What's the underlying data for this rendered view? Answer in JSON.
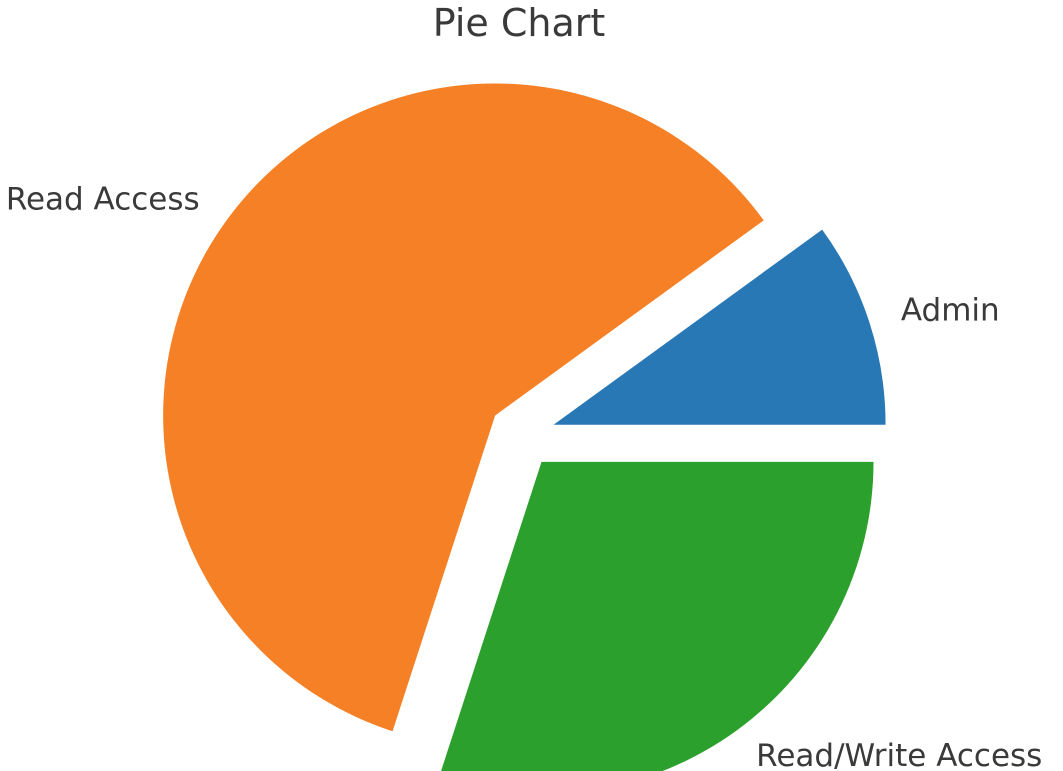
{
  "chart_data": {
    "type": "pie",
    "title": "Pie Chart",
    "labels": [
      "Admin",
      "Read Access",
      "Read/Write Access"
    ],
    "values": [
      10,
      60,
      30
    ],
    "colors": [
      "#2878b5",
      "#f58025",
      "#2ca02c"
    ],
    "explode": [
      0.1,
      0.1,
      0.1
    ],
    "start_angle_deg": 0,
    "direction": "counterclockwise"
  }
}
